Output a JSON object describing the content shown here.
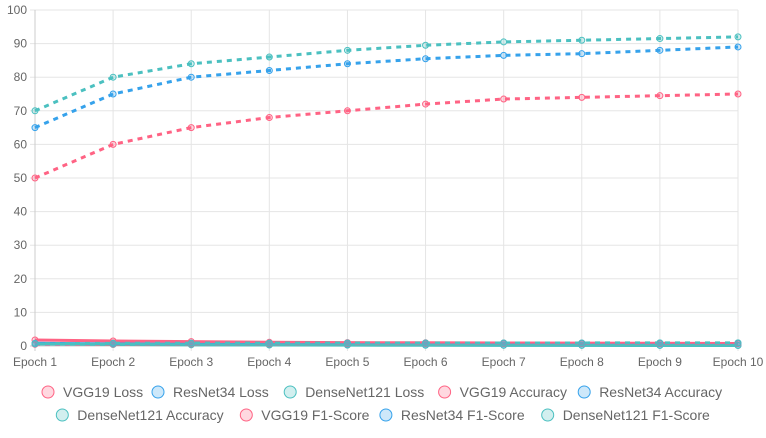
{
  "chart_data": {
    "type": "line",
    "categories": [
      "Epoch 1",
      "Epoch 2",
      "Epoch 3",
      "Epoch 4",
      "Epoch 5",
      "Epoch 6",
      "Epoch 7",
      "Epoch 8",
      "Epoch 9",
      "Epoch 10"
    ],
    "ylim": [
      0,
      100
    ],
    "yticks": [
      0,
      10,
      20,
      30,
      40,
      50,
      60,
      70,
      80,
      90,
      100
    ],
    "grid": true,
    "legend_position": "bottom",
    "series": [
      {
        "name": "VGG19 Loss",
        "color": "#ff6384",
        "dashed": false,
        "values": [
          1.8,
          1.5,
          1.3,
          1.1,
          1.0,
          0.95,
          0.9,
          0.85,
          0.8,
          0.75
        ]
      },
      {
        "name": "ResNet34 Loss",
        "color": "#36a2eb",
        "dashed": false,
        "values": [
          0.8,
          0.6,
          0.5,
          0.42,
          0.36,
          0.3,
          0.27,
          0.24,
          0.22,
          0.2
        ]
      },
      {
        "name": "DenseNet121 Loss",
        "color": "#4bc0c0",
        "dashed": false,
        "values": [
          0.6,
          0.45,
          0.35,
          0.3,
          0.25,
          0.22,
          0.2,
          0.18,
          0.16,
          0.15
        ]
      },
      {
        "name": "VGG19 Accuracy",
        "color": "#ff6384",
        "dashed": true,
        "values": [
          50,
          60,
          65,
          68,
          70,
          72,
          73.5,
          74,
          74.5,
          75
        ]
      },
      {
        "name": "ResNet34 Accuracy",
        "color": "#36a2eb",
        "dashed": true,
        "values": [
          65,
          75,
          80,
          82,
          84,
          85.5,
          86.5,
          87,
          88,
          89
        ]
      },
      {
        "name": "DenseNet121 Accuracy",
        "color": "#4bc0c0",
        "dashed": true,
        "values": [
          70,
          80,
          84,
          86,
          88,
          89.5,
          90.5,
          91,
          91.5,
          92
        ]
      },
      {
        "name": "VGG19 F1-Score",
        "color": "#ff6384",
        "dashed": true,
        "values": [
          0.5,
          0.6,
          0.65,
          0.68,
          0.7,
          0.72,
          0.74,
          0.74,
          0.75,
          0.75
        ]
      },
      {
        "name": "ResNet34 F1-Score",
        "color": "#36a2eb",
        "dashed": true,
        "values": [
          0.65,
          0.75,
          0.8,
          0.82,
          0.84,
          0.86,
          0.87,
          0.87,
          0.88,
          0.89
        ]
      },
      {
        "name": "DenseNet121 F1-Score",
        "color": "#4bc0c0",
        "dashed": true,
        "values": [
          0.7,
          0.8,
          0.84,
          0.86,
          0.88,
          0.9,
          0.9,
          0.91,
          0.92,
          0.92
        ]
      }
    ]
  }
}
